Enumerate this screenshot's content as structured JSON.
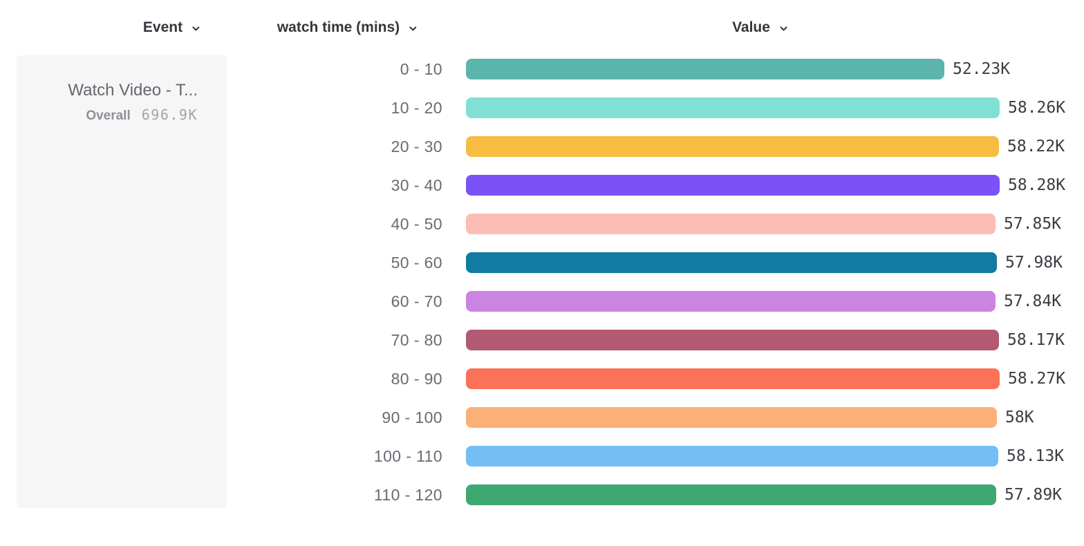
{
  "header": {
    "columns": [
      "Event",
      "watch time (mins)",
      "Value"
    ]
  },
  "event_card": {
    "event_name": "Watch Video - T...",
    "overall_label": "Overall",
    "overall_value": "696.9K"
  },
  "chart_data": {
    "type": "bar",
    "orientation": "horizontal",
    "title": "",
    "series_name": "watch time (mins)",
    "categories": [
      "0 - 10",
      "10 - 20",
      "20 - 30",
      "30 - 40",
      "40 - 50",
      "50 - 60",
      "60 - 70",
      "70 - 80",
      "80 - 90",
      "90 - 100",
      "100 - 110",
      "110 - 120"
    ],
    "values": [
      52230,
      58260,
      58220,
      58280,
      57850,
      57980,
      57840,
      58170,
      58270,
      58000,
      58130,
      57890
    ],
    "value_labels": [
      "52.23K",
      "58.26K",
      "58.22K",
      "58.28K",
      "57.85K",
      "57.98K",
      "57.84K",
      "58.17K",
      "58.27K",
      "58K",
      "58.13K",
      "57.89K"
    ],
    "colors": [
      "#5cb5ad",
      "#80e0d4",
      "#f7bc41",
      "#7a52f6",
      "#fcbdb5",
      "#117ba2",
      "#cc84e1",
      "#b25a72",
      "#fc7258",
      "#fcb078",
      "#73bef4",
      "#3fa771"
    ],
    "xlim": [
      0,
      58280
    ],
    "legend": "none",
    "grid": false
  },
  "icons": {
    "chevron_down": "chevron-down"
  }
}
